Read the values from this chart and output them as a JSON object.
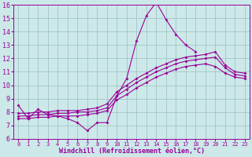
{
  "xlabel": "Windchill (Refroidissement éolien,°C)",
  "xlim": [
    -0.5,
    23.5
  ],
  "ylim": [
    6,
    16
  ],
  "xticks": [
    0,
    1,
    2,
    3,
    4,
    5,
    6,
    7,
    8,
    9,
    10,
    11,
    12,
    13,
    14,
    15,
    16,
    17,
    18,
    19,
    20,
    21,
    22,
    23
  ],
  "yticks": [
    6,
    7,
    8,
    9,
    10,
    11,
    12,
    13,
    14,
    15,
    16
  ],
  "bg_color": "#cce8e8",
  "line_color": "#990099",
  "grid_color": "#9bbfbf",
  "line1_x": [
    0,
    1,
    2,
    3,
    4,
    5,
    6,
    7,
    8,
    9,
    10,
    11,
    12,
    13,
    14,
    15,
    16,
    17,
    18
  ],
  "line1_y": [
    8.5,
    7.5,
    8.2,
    7.8,
    7.7,
    7.5,
    7.2,
    6.6,
    7.2,
    7.2,
    9.2,
    10.5,
    13.3,
    15.2,
    16.2,
    14.9,
    13.8,
    13.0,
    12.5
  ],
  "line2_x": [
    0,
    1,
    2,
    3,
    4,
    5,
    6,
    7,
    8,
    9,
    10,
    11,
    12,
    13,
    14,
    15,
    16,
    17,
    18,
    19,
    20,
    21,
    22,
    23
  ],
  "line2_y": [
    7.7,
    7.7,
    7.8,
    7.8,
    7.9,
    7.9,
    8.0,
    8.0,
    8.1,
    8.3,
    9.2,
    9.7,
    10.2,
    10.6,
    11.0,
    11.3,
    11.6,
    11.8,
    11.9,
    12.0,
    12.1,
    11.3,
    10.8,
    10.7
  ],
  "line3_x": [
    0,
    1,
    2,
    3,
    4,
    5,
    6,
    7,
    8,
    9,
    10,
    11,
    12,
    13,
    14,
    15,
    16,
    17,
    18,
    19,
    20,
    21,
    22,
    23
  ],
  "line3_y": [
    7.5,
    7.5,
    7.6,
    7.6,
    7.7,
    7.7,
    7.7,
    7.8,
    7.9,
    8.1,
    8.9,
    9.3,
    9.8,
    10.2,
    10.6,
    10.9,
    11.2,
    11.4,
    11.5,
    11.6,
    11.4,
    10.9,
    10.6,
    10.5
  ],
  "line4_x": [
    0,
    1,
    2,
    3,
    4,
    5,
    6,
    7,
    8,
    9,
    10,
    11,
    12,
    13,
    14,
    15,
    16,
    17,
    18,
    19,
    20,
    21,
    22,
    23
  ],
  "line4_y": [
    7.9,
    7.9,
    8.0,
    8.0,
    8.1,
    8.1,
    8.1,
    8.2,
    8.3,
    8.6,
    9.5,
    10.0,
    10.5,
    10.9,
    11.3,
    11.6,
    11.9,
    12.1,
    12.2,
    12.3,
    12.5,
    11.5,
    11.0,
    10.9
  ],
  "marker": "D",
  "marker_size": 2.0,
  "line_width": 0.8,
  "xlabel_fontsize": 6,
  "tick_fontsize_x": 5,
  "tick_fontsize_y": 6
}
